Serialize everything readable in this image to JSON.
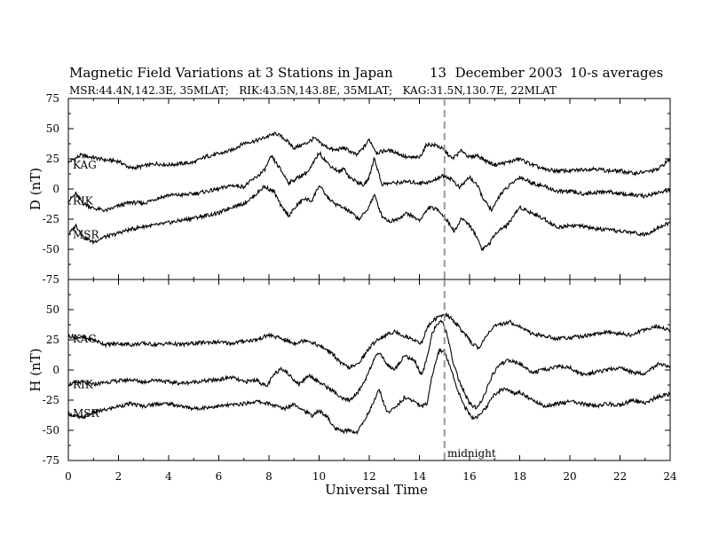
{
  "chart_data": {
    "type": "line",
    "title": "Magnetic Field Variations at 3 Stations in Japan",
    "date": "13  December 2003",
    "averaging": "10-s averages",
    "subtitle": "MSR:44.4N,142.3E, 35MLAT;   RIK:43.5N,143.8E, 35MLAT;   KAG:31.5N,130.7E, 22MLAT",
    "xlabel": "Universal Time",
    "xlim": [
      0,
      24
    ],
    "xticks": [
      "0",
      "2",
      "4",
      "6",
      "8",
      "10",
      "12",
      "14",
      "16",
      "18",
      "20",
      "22",
      "24"
    ],
    "grid": false,
    "annotation": {
      "x": 15,
      "label": "midnight",
      "style": "dashed"
    },
    "panels": [
      {
        "ylabel": "D (nT)",
        "ylim": [
          -75,
          75
        ],
        "yticks": [
          "75",
          "50",
          "25",
          "0",
          "-25",
          "-50",
          "-75"
        ],
        "series": [
          {
            "name": "KAG",
            "x": [
              0,
              0.5,
              1,
              1.5,
              2,
              2.5,
              3,
              3.5,
              4,
              4.5,
              5,
              5.5,
              6,
              6.5,
              7,
              7.5,
              8,
              8.3,
              8.6,
              9,
              9.5,
              9.8,
              10.2,
              10.6,
              11,
              11.5,
              11.8,
              12,
              12.3,
              12.7,
              13,
              13.5,
              14,
              14.3,
              14.7,
              15,
              15.3,
              15.7,
              16,
              16.3,
              16.6,
              17,
              17.5,
              18,
              18.5,
              19,
              19.5,
              20,
              20.5,
              21,
              21.5,
              22,
              22.5,
              23,
              23.5,
              24
            ],
            "y": [
              22,
              28,
              26,
              24,
              23,
              17,
              19,
              21,
              20,
              21,
              22,
              27,
              29,
              32,
              38,
              40,
              44,
              46,
              42,
              34,
              38,
              42,
              36,
              32,
              34,
              28,
              35,
              41,
              30,
              32,
              31,
              26,
              26,
              37,
              36,
              32,
              25,
              32,
              26,
              28,
              24,
              20,
              22,
              25,
              20,
              16,
              15,
              15,
              16,
              17,
              15,
              15,
              13,
              14,
              16,
              25
            ]
          },
          {
            "name": "RIK",
            "x": [
              0,
              0.3,
              0.6,
              1,
              1.5,
              2,
              2.5,
              3,
              3.5,
              4,
              4.5,
              5,
              5.5,
              6,
              6.5,
              7,
              7.5,
              7.8,
              8.1,
              8.4,
              8.8,
              9.2,
              9.6,
              10,
              10.4,
              10.8,
              11,
              11.2,
              11.5,
              11.8,
              12,
              12.2,
              12.5,
              13,
              13.5,
              14,
              14.5,
              14.8,
              15,
              15.3,
              15.6,
              16,
              16.3,
              16.6,
              16.9,
              17.2,
              17.6,
              18,
              18.5,
              19,
              19.5,
              20,
              20.5,
              21,
              21.5,
              22,
              22.5,
              23,
              23.5,
              24
            ],
            "y": [
              -10,
              -4,
              -12,
              -16,
              -18,
              -14,
              -11,
              -12,
              -8,
              -5,
              -5,
              -4,
              -2,
              0,
              3,
              2,
              10,
              15,
              27,
              18,
              5,
              10,
              15,
              30,
              20,
              14,
              17,
              10,
              6,
              3,
              10,
              26,
              4,
              5,
              6,
              5,
              6,
              10,
              11,
              8,
              1,
              10,
              3,
              -10,
              -18,
              -5,
              3,
              10,
              5,
              2,
              -2,
              -2,
              -4,
              -3,
              -2,
              -4,
              -5,
              -6,
              -3,
              -1
            ]
          },
          {
            "name": "MSR",
            "x": [
              0,
              0.3,
              0.6,
              1,
              1.4,
              1.8,
              2.2,
              2.6,
              3,
              3.5,
              4,
              4.5,
              5,
              5.5,
              6,
              6.5,
              7,
              7.4,
              7.8,
              8.2,
              8.5,
              8.8,
              9.1,
              9.4,
              9.7,
              10,
              10.3,
              10.6,
              11,
              11.3,
              11.6,
              11.9,
              12.2,
              12.5,
              12.8,
              13.1,
              13.5,
              14,
              14.4,
              14.8,
              15.1,
              15.4,
              15.7,
              16,
              16.3,
              16.5,
              16.8,
              17.1,
              17.5,
              18,
              18.5,
              19,
              19.5,
              20,
              20.5,
              21,
              21.5,
              22,
              22.5,
              23,
              23.5,
              24
            ],
            "y": [
              -38,
              -30,
              -40,
              -44,
              -40,
              -38,
              -35,
              -33,
              -31,
              -30,
              -28,
              -26,
              -24,
              -22,
              -20,
              -15,
              -12,
              -6,
              2,
              -2,
              -15,
              -22,
              -14,
              -8,
              -10,
              3,
              -6,
              -12,
              -16,
              -20,
              -25,
              -18,
              -5,
              -22,
              -27,
              -25,
              -20,
              -26,
              -15,
              -18,
              -26,
              -35,
              -24,
              -30,
              -40,
              -50,
              -45,
              -35,
              -30,
              -15,
              -20,
              -25,
              -32,
              -30,
              -31,
              -33,
              -34,
              -35,
              -36,
              -38,
              -32,
              -28
            ]
          }
        ]
      },
      {
        "ylabel": "H (nT)",
        "ylim": [
          -75,
          75
        ],
        "yticks": [
          "75",
          "50",
          "25",
          "0",
          "-25",
          "-50",
          "-75"
        ],
        "series": [
          {
            "name": "KAG",
            "x": [
              0,
              0.5,
              1,
              1.5,
              2,
              2.5,
              3,
              3.5,
              4,
              4.5,
              5,
              5.5,
              6,
              6.5,
              7,
              7.5,
              8,
              8.5,
              9,
              9.5,
              10,
              10.3,
              10.6,
              10.9,
              11.2,
              11.5,
              11.8,
              12,
              12.3,
              12.6,
              13,
              13.4,
              13.8,
              14.1,
              14.3,
              14.6,
              14.9,
              15.1,
              15.4,
              15.8,
              16.1,
              16.4,
              16.7,
              17,
              17.3,
              17.6,
              18,
              18.5,
              19,
              19.5,
              20,
              20.5,
              21,
              21.5,
              22,
              22.5,
              23,
              23.5,
              24
            ],
            "y": [
              28,
              27,
              25,
              21,
              22,
              21,
              22,
              21,
              22,
              21,
              22,
              23,
              23,
              22,
              24,
              25,
              29,
              26,
              22,
              25,
              20,
              17,
              12,
              5,
              2,
              4,
              12,
              18,
              25,
              28,
              32,
              28,
              25,
              22,
              35,
              42,
              45,
              46,
              40,
              30,
              22,
              18,
              30,
              36,
              38,
              40,
              36,
              30,
              28,
              26,
              27,
              28,
              30,
              31,
              30,
              29,
              34,
              36,
              33
            ]
          },
          {
            "name": "RIK",
            "x": [
              0,
              0.5,
              1,
              1.5,
              2,
              2.5,
              3,
              3.5,
              4,
              4.5,
              5,
              5.5,
              6,
              6.5,
              7,
              7.5,
              7.9,
              8.2,
              8.5,
              8.9,
              9.2,
              9.6,
              10,
              10.3,
              10.6,
              10.9,
              11.2,
              11.5,
              11.8,
              12.1,
              12.4,
              12.7,
              13,
              13.4,
              13.8,
              14.1,
              14.3,
              14.5,
              14.7,
              14.9,
              15.1,
              15.3,
              15.6,
              16,
              16.3,
              16.6,
              16.9,
              17.2,
              17.6,
              18,
              18.5,
              19,
              19.5,
              20,
              20.5,
              21,
              21.5,
              22,
              22.5,
              23,
              23.5,
              24
            ],
            "y": [
              -12,
              -10,
              -12,
              -10,
              -9,
              -8,
              -10,
              -8,
              -10,
              -11,
              -10,
              -9,
              -8,
              -6,
              -10,
              -8,
              -14,
              -4,
              2,
              -6,
              -12,
              -4,
              -10,
              -14,
              -18,
              -24,
              -25,
              -20,
              -10,
              5,
              15,
              5,
              0,
              12,
              8,
              -5,
              10,
              30,
              38,
              40,
              30,
              10,
              -10,
              -28,
              -32,
              -20,
              -5,
              5,
              8,
              5,
              -2,
              0,
              3,
              2,
              -4,
              -2,
              0,
              2,
              -2,
              -3,
              5,
              2
            ]
          },
          {
            "name": "MSR",
            "x": [
              0,
              0.5,
              1,
              1.5,
              2,
              2.5,
              3,
              3.5,
              4,
              4.5,
              5,
              5.5,
              6,
              6.5,
              7,
              7.5,
              8,
              8.3,
              8.6,
              9,
              9.3,
              9.7,
              10,
              10.3,
              10.6,
              10.9,
              11.2,
              11.5,
              11.8,
              12.1,
              12.4,
              12.7,
              13,
              13.4,
              13.8,
              14.1,
              14.3,
              14.5,
              14.8,
              15,
              15.2,
              15.5,
              15.8,
              16.1,
              16.4,
              16.7,
              17,
              17.4,
              17.8,
              18,
              18.5,
              19,
              19.5,
              20,
              20.5,
              21,
              21.5,
              22,
              22.5,
              23,
              23.5,
              24
            ],
            "y": [
              -36,
              -40,
              -35,
              -33,
              -30,
              -28,
              -30,
              -28,
              -28,
              -30,
              -32,
              -31,
              -30,
              -29,
              -28,
              -26,
              -28,
              -30,
              -32,
              -28,
              -32,
              -38,
              -34,
              -38,
              -48,
              -51,
              -50,
              -52,
              -42,
              -30,
              -16,
              -35,
              -32,
              -23,
              -26,
              -30,
              -28,
              -5,
              17,
              15,
              5,
              -15,
              -30,
              -40,
              -38,
              -30,
              -20,
              -15,
              -20,
              -18,
              -25,
              -30,
              -28,
              -26,
              -28,
              -30,
              -28,
              -29,
              -25,
              -28,
              -22,
              -20
            ]
          }
        ]
      }
    ]
  }
}
